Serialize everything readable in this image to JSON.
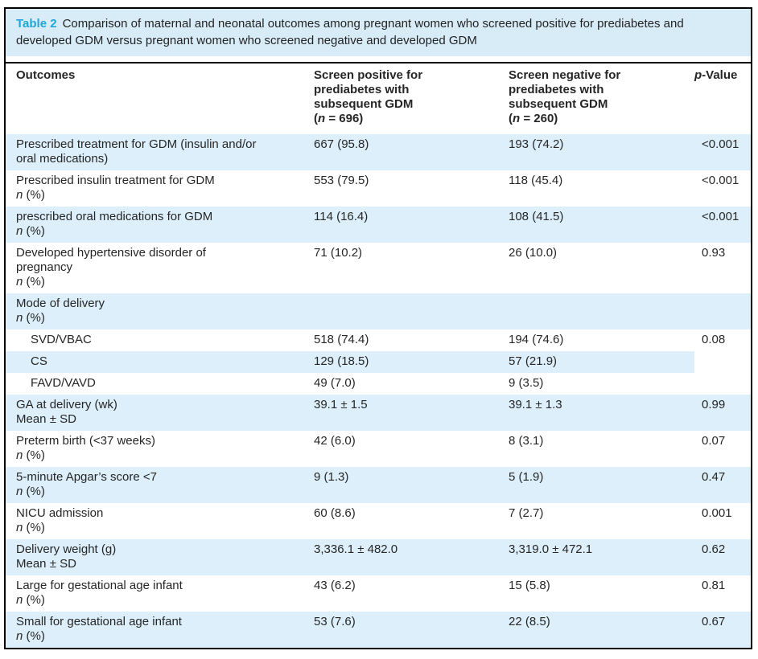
{
  "figure": {
    "caption": {
      "label": "Table 2",
      "text": "Comparison of maternal and neonatal outcomes among pregnant women who screened positive for prediabetes and developed GDM versus pregnant women who screened negative and developed GDM"
    },
    "header": {
      "columns": [
        {
          "id": "outcomes",
          "lines": [
            "Outcomes"
          ]
        },
        {
          "id": "screen_positive",
          "lines": [
            "Screen positive for",
            "prediabetes with",
            "subsequent GDM",
            "(*n* = 696)"
          ]
        },
        {
          "id": "screen_negative",
          "lines": [
            "Screen negative for",
            "prediabetes with",
            "subsequent GDM",
            "(*n* = 260)"
          ]
        },
        {
          "id": "p_value",
          "lines": [
            "*p*-Value"
          ]
        }
      ]
    },
    "rows": [
      {
        "label": "Prescribed treatment for GDM (insulin and/or oral medications)",
        "sub": "",
        "indent": false,
        "v1": "667 (95.8)",
        "v2": "193 (74.2)",
        "p": "<0.001"
      },
      {
        "label": "Prescribed insulin treatment for GDM",
        "sub": "*n* (%)",
        "indent": false,
        "v1": "553 (79.5)",
        "v2": "118 (45.4)",
        "p": "<0.001"
      },
      {
        "label": "prescribed oral medications for GDM",
        "sub": "*n* (%)",
        "indent": false,
        "v1": "114 (16.4)",
        "v2": "108 (41.5)",
        "p": "<0.001"
      },
      {
        "label": "Developed hypertensive disorder of pregnancy",
        "sub": "*n* (%)",
        "indent": false,
        "v1": "71 (10.2)",
        "v2": "26 (10.0)",
        "p": "0.93"
      },
      {
        "label": "Mode of delivery",
        "sub": "*n* (%)",
        "indent": false,
        "v1": "",
        "v2": "",
        "p": ""
      },
      {
        "label": "SVD/VBAC",
        "sub": "",
        "indent": true,
        "v1": "518 (74.4)",
        "v2": "194 (74.6)",
        "p": "0.08"
      },
      {
        "label": "CS",
        "sub": "",
        "indent": true,
        "v1": "129 (18.5)",
        "v2": "57 (21.9)",
        "p": ""
      },
      {
        "label": "FAVD/VAVD",
        "sub": "",
        "indent": true,
        "v1": "49 (7.0)",
        "v2": "9 (3.5)",
        "p": ""
      },
      {
        "label": "GA at delivery (wk)",
        "sub": "Mean ± SD",
        "indent": false,
        "v1": "39.1 ± 1.5",
        "v2": "39.1 ± 1.3",
        "p": "0.99"
      },
      {
        "label": "Preterm birth (<37 weeks)",
        "sub": "*n* (%)",
        "indent": false,
        "v1": "42 (6.0)",
        "v2": "8 (3.1)",
        "p": "0.07"
      },
      {
        "label": "5-minute Apgar’s score <7",
        "sub": "*n* (%)",
        "indent": false,
        "v1": "9 (1.3)",
        "v2": "5 (1.9)",
        "p": "0.47"
      },
      {
        "label": "NICU admission",
        "sub": "*n* (%)",
        "indent": false,
        "v1": "60 (8.6)",
        "v2": "7 (2.7)",
        "p": "0.001"
      },
      {
        "label": "Delivery weight (g)",
        "sub": "Mean ± SD",
        "indent": false,
        "v1": "3,336.1 ± 482.0",
        "v2": "3,319.0 ± 472.1",
        "p": "0.62"
      },
      {
        "label": "Large for gestational age infant",
        "sub": "*n* (%)",
        "indent": false,
        "v1": "43 (6.2)",
        "v2": "15 (5.8)",
        "p": "0.81"
      },
      {
        "label": "Small for gestational age infant",
        "sub": "*n* (%)",
        "indent": false,
        "v1": "53 (7.6)",
        "v2": "22 (8.5)",
        "p": "0.67"
      }
    ]
  },
  "colors": {
    "accent_teal": "#1ea6da",
    "caption_bg": "#d8ecf8",
    "stripe_bg": "#ddeffa",
    "text": "#262626",
    "border": "#000000"
  }
}
